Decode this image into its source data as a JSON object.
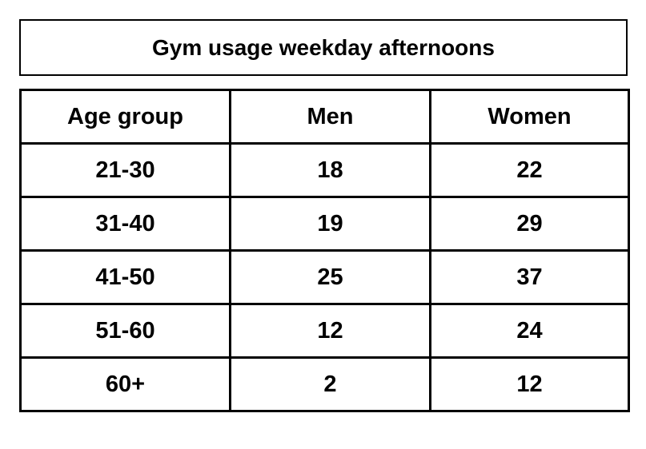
{
  "header": {
    "title": "Gym usage weekday afternoons"
  },
  "table": {
    "columns": [
      "Age group",
      "Men",
      "Women"
    ],
    "rows": [
      [
        "21-30",
        18,
        22
      ],
      [
        "31-40",
        19,
        29
      ],
      [
        "41-50",
        25,
        37
      ],
      [
        "51-60",
        12,
        24
      ],
      [
        "60+",
        2,
        12
      ]
    ]
  }
}
